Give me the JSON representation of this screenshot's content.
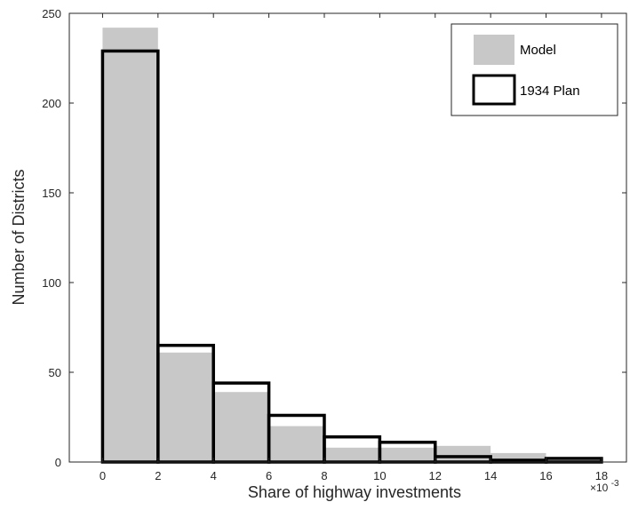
{
  "colors": {
    "model_fill": "#c8c8c8",
    "plan_stroke": "#000000",
    "axis": "#262626",
    "background": "#ffffff"
  },
  "chart_data": {
    "type": "bar",
    "title": "",
    "xlabel": "Share of highway investments",
    "ylabel": "Number of Districts",
    "x_multiplier_label": {
      "base": "×10",
      "exponent": "-3"
    },
    "xlim": [
      -1.2,
      18.9
    ],
    "ylim": [
      0,
      250
    ],
    "x_ticks": [
      0,
      2,
      4,
      6,
      8,
      10,
      12,
      14,
      16,
      18
    ],
    "x_tick_labels": [
      "0",
      "2",
      "4",
      "6",
      "8",
      "10",
      "12",
      "14",
      "16",
      "18"
    ],
    "y_ticks": [
      0,
      50,
      100,
      150,
      200,
      250
    ],
    "y_tick_labels": [
      "0",
      "50",
      "100",
      "150",
      "200",
      "250"
    ],
    "bin_edges": [
      0,
      2,
      4,
      6,
      8,
      10,
      12,
      14,
      16,
      18
    ],
    "grid": false,
    "legend_position": "top-right",
    "series": [
      {
        "name": "Model",
        "style": "filled",
        "values": [
          242,
          61,
          39,
          20,
          8,
          8,
          9,
          5,
          1
        ]
      },
      {
        "name": "1934 Plan",
        "style": "outline",
        "values": [
          229,
          65,
          44,
          26,
          14,
          11,
          3,
          1,
          2
        ]
      }
    ]
  }
}
